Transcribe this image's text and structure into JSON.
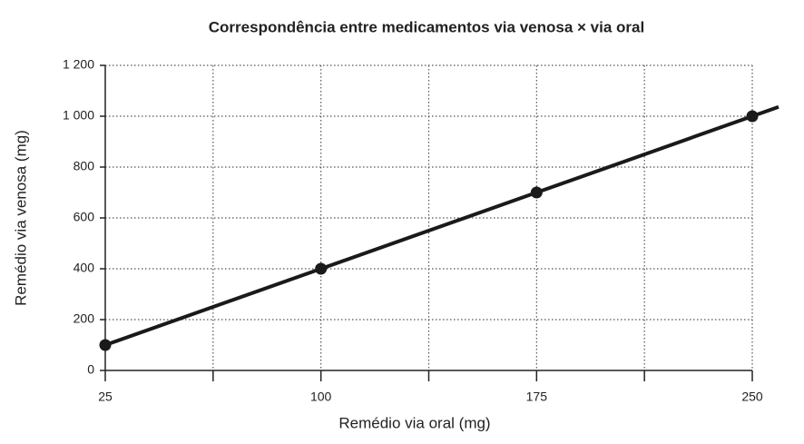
{
  "chart_data": {
    "type": "line",
    "title": "Correspondência entre medicamentos via venosa × via oral",
    "x_label": "Remédio via oral (mg)",
    "y_label": "Remédio via venosa (mg)",
    "x": [
      25,
      100,
      175,
      250
    ],
    "series": [
      {
        "name": "Remédio via venosa",
        "color": "#1a1a1a",
        "values": [
          100,
          400,
          700,
          1000
        ]
      }
    ],
    "xlim": [
      25,
      250
    ],
    "xticks": [
      25,
      100,
      175,
      250
    ],
    "xminorticks": [
      62.5,
      137.5,
      212.5
    ],
    "ylim": [
      0,
      1200
    ],
    "yticks": [
      0,
      200,
      400,
      600,
      800,
      {
        "value": 1000,
        "label": "1 000"
      },
      {
        "value": 1200,
        "label": "1 200"
      }
    ],
    "grid": true
  }
}
